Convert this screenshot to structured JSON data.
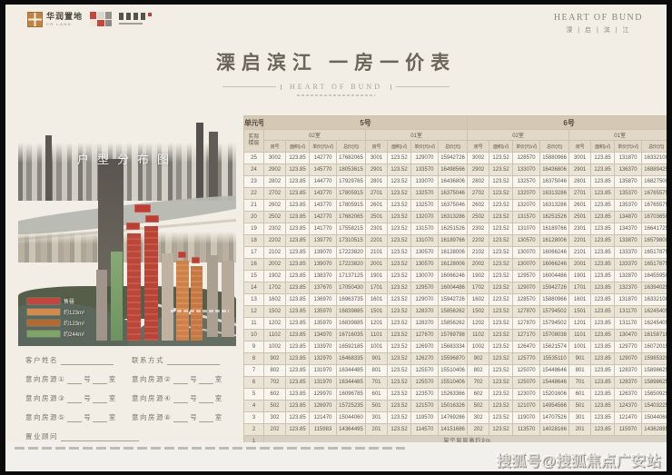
{
  "header": {
    "logo_cr_cn": "华润置地",
    "logo_cr_en": "CR LAND",
    "brand_en": "HEART OF BUND",
    "brand_cn": "溧 | 启 | 滨 | 江",
    "title": "溧启滨江  一房一价表",
    "subtitle_en": "HEART OF BUND"
  },
  "photo": {
    "caption": "户型分布图",
    "legend": [
      {
        "label": "售罄",
        "color": "#c2463a"
      },
      {
        "label": "约123m²",
        "color": "#d08b4d"
      },
      {
        "label": "约123m²",
        "color": "#b26a33"
      },
      {
        "label": "约244m²",
        "color": "#7fa468"
      }
    ]
  },
  "form": {
    "name_label": "客户姓名",
    "contact_label": "联系方式",
    "intents": [
      "意向房源①",
      "意向房源②",
      "意向房源③",
      "意向房源④",
      "意向房源⑤",
      "意向房源⑥"
    ],
    "hao": "号",
    "shi": "室",
    "consultant_label": "置业顾问"
  },
  "table": {
    "corner_top": "单元号",
    "corner_side": "实际楼层",
    "buildings": [
      "5号",
      "6号"
    ],
    "units": [
      "02室",
      "01室",
      "02室",
      "01室"
    ],
    "col_headers": [
      "房号",
      "面积(㎡)",
      "单价(元/㎡)",
      "总价(元)"
    ],
    "rows": [
      {
        "floor": "25",
        "cells": [
          "3002",
          "123.85",
          "142770",
          "17682065",
          "3001",
          "123.52",
          "129070",
          "15942726",
          "3002",
          "123.52",
          "128570",
          "15880966",
          "3001",
          "123.85",
          "131870",
          "16332100"
        ]
      },
      {
        "floor": "24",
        "cells": [
          "2902",
          "123.85",
          "145770",
          "18053615",
          "2901",
          "123.52",
          "133570",
          "16498566",
          "2902",
          "123.52",
          "133070",
          "16436806",
          "2901",
          "123.85",
          "136370",
          "16889425"
        ]
      },
      {
        "floor": "23",
        "cells": [
          "2802",
          "123.85",
          "144770",
          "17929765",
          "2801",
          "123.52",
          "133070",
          "16436806",
          "2802",
          "123.52",
          "132570",
          "16375046",
          "2801",
          "123.85",
          "135870",
          "16827500"
        ]
      },
      {
        "floor": "22",
        "cells": [
          "2702",
          "123.85",
          "143770",
          "17805915",
          "2701",
          "123.52",
          "132570",
          "16375046",
          "2702",
          "123.52",
          "132070",
          "16313286",
          "2701",
          "123.85",
          "135370",
          "16765575"
        ]
      },
      {
        "floor": "21",
        "cells": [
          "2602",
          "123.85",
          "143770",
          "17805915",
          "2601",
          "123.52",
          "132570",
          "16375046",
          "2602",
          "123.52",
          "132070",
          "16313286",
          "2601",
          "123.85",
          "135370",
          "16765575"
        ]
      },
      {
        "floor": "20",
        "cells": [
          "2502",
          "123.85",
          "142770",
          "17682065",
          "2501",
          "123.52",
          "132070",
          "16313286",
          "2502",
          "123.52",
          "131570",
          "16251526",
          "2501",
          "123.85",
          "134870",
          "16703650"
        ]
      },
      {
        "floor": "19",
        "cells": [
          "2302",
          "123.85",
          "141770",
          "17558215",
          "2301",
          "123.52",
          "131570",
          "16251526",
          "2302",
          "123.52",
          "131070",
          "16189766",
          "2301",
          "123.85",
          "134370",
          "16641725"
        ]
      },
      {
        "floor": "18",
        "cells": [
          "2202",
          "123.85",
          "139770",
          "17310515",
          "2201",
          "123.52",
          "131070",
          "16189766",
          "2202",
          "123.52",
          "130570",
          "16128006",
          "2201",
          "123.85",
          "133870",
          "16579800"
        ]
      },
      {
        "floor": "17",
        "cells": [
          "2102",
          "123.85",
          "139070",
          "17223820",
          "2101",
          "123.52",
          "130570",
          "16128006",
          "2102",
          "123.52",
          "130070",
          "16066246",
          "2101",
          "123.85",
          "133370",
          "16517875"
        ]
      },
      {
        "floor": "16",
        "cells": [
          "2002",
          "123.85",
          "139070",
          "17223820",
          "2001",
          "123.52",
          "130570",
          "16128006",
          "2002",
          "123.52",
          "130070",
          "16066246",
          "2001",
          "123.85",
          "133370",
          "16517875"
        ]
      },
      {
        "floor": "15",
        "cells": [
          "1902",
          "123.85",
          "138370",
          "17137125",
          "1901",
          "123.52",
          "130070",
          "16066246",
          "1902",
          "123.52",
          "129570",
          "16004486",
          "1901",
          "123.85",
          "132870",
          "16455950"
        ]
      },
      {
        "floor": "14",
        "cells": [
          "1702",
          "123.85",
          "137670",
          "17050430",
          "1701",
          "123.52",
          "129570",
          "16004486",
          "1702",
          "123.52",
          "129070",
          "15942726",
          "1701",
          "123.85",
          "132370",
          "16394025"
        ]
      },
      {
        "floor": "13",
        "cells": [
          "1602",
          "123.85",
          "136970",
          "16963735",
          "1601",
          "123.52",
          "129070",
          "15942726",
          "1602",
          "123.52",
          "128570",
          "15880966",
          "1601",
          "123.85",
          "131870",
          "16332100"
        ]
      },
      {
        "floor": "12",
        "cells": [
          "1502",
          "123.85",
          "135970",
          "16839885",
          "1501",
          "123.52",
          "128370",
          "15856262",
          "1502",
          "123.52",
          "127870",
          "15794502",
          "1501",
          "123.85",
          "131170",
          "16245405"
        ]
      },
      {
        "floor": "11",
        "cells": [
          "1202",
          "123.85",
          "135970",
          "16839885",
          "1201",
          "123.52",
          "128370",
          "15856262",
          "1202",
          "123.52",
          "127870",
          "15794502",
          "1201",
          "123.85",
          "131170",
          "16245405"
        ]
      },
      {
        "floor": "10",
        "cells": [
          "1102",
          "123.85",
          "134970",
          "16716035",
          "1101",
          "123.52",
          "127670",
          "15769798",
          "1102",
          "123.52",
          "127170",
          "15708038",
          "1101",
          "123.85",
          "130470",
          "16158710"
        ]
      },
      {
        "floor": "9",
        "cells": [
          "1002",
          "123.85",
          "133970",
          "16592185",
          "1001",
          "123.52",
          "126970",
          "15683334",
          "1002",
          "123.52",
          "126470",
          "15621574",
          "1001",
          "123.85",
          "129770",
          "16072015"
        ]
      },
      {
        "floor": "8",
        "cells": [
          "902",
          "123.85",
          "132970",
          "16468335",
          "901",
          "123.52",
          "126270",
          "15596870",
          "902",
          "123.52",
          "125770",
          "15535110",
          "901",
          "123.85",
          "129070",
          "15985320"
        ]
      },
      {
        "floor": "7",
        "cells": [
          "802",
          "123.85",
          "131970",
          "16344485",
          "801",
          "123.52",
          "125570",
          "15510406",
          "802",
          "123.52",
          "125070",
          "15448646",
          "801",
          "123.85",
          "128370",
          "15898625"
        ]
      },
      {
        "floor": "6",
        "cells": [
          "702",
          "123.85",
          "131970",
          "16344485",
          "701",
          "123.52",
          "125570",
          "15510406",
          "702",
          "123.52",
          "125070",
          "15448646",
          "701",
          "123.85",
          "128370",
          "15898625"
        ]
      },
      {
        "floor": "5",
        "cells": [
          "602",
          "123.85",
          "129970",
          "16096785",
          "601",
          "123.52",
          "123570",
          "15263366",
          "602",
          "123.52",
          "123070",
          "15201606",
          "601",
          "123.85",
          "126370",
          "15650925"
        ]
      },
      {
        "floor": "4",
        "cells": [
          "502",
          "123.85",
          "126970",
          "15725235",
          "501",
          "123.52",
          "121570",
          "15016326",
          "502",
          "123.52",
          "121070",
          "14954566",
          "501",
          "123.85",
          "124370",
          "15403225"
        ]
      },
      {
        "floor": "3",
        "cells": [
          "302",
          "123.85",
          "121470",
          "15044060",
          "301",
          "123.52",
          "119570",
          "14769286",
          "302",
          "123.52",
          "119070",
          "14707526",
          "301",
          "123.85",
          "121470",
          "15044060"
        ]
      },
      {
        "floor": "2",
        "cells": [
          "202",
          "123.85",
          "115983",
          "14364495",
          "201",
          "123.52",
          "114570",
          "14151686",
          "202",
          "123.52",
          "113570",
          "14028166",
          "201",
          "123.85",
          "115970",
          "14362885"
        ]
      }
    ],
    "note_row": {
      "floor": "1",
      "note": "架空层层高约9m"
    }
  },
  "watermark": "搜狐号@搜狐焦点广安站",
  "colors": {
    "accent_red": "#c2463a",
    "table_header": "#d5c9b6",
    "cream": "#f2eee5"
  }
}
